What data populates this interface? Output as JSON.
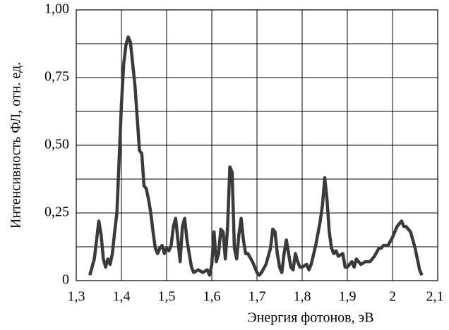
{
  "chart_data": {
    "type": "line",
    "x_label": "Энергия фотонов, эВ",
    "y_label": "Интенсивность ФЛ, отн. ед.",
    "xlim": [
      1.3,
      2.1
    ],
    "ylim": [
      0,
      1
    ],
    "xticks": [
      {
        "value": 1.3,
        "label": "1,3"
      },
      {
        "value": 1.4,
        "label": "1,4"
      },
      {
        "value": 1.5,
        "label": "1,5"
      },
      {
        "value": 1.6,
        "label": "1,6"
      },
      {
        "value": 1.7,
        "label": "1,7"
      },
      {
        "value": 1.8,
        "label": "1,8"
      },
      {
        "value": 1.9,
        "label": "1,9"
      },
      2,
      {
        "value": 2.1,
        "label": "2,1"
      }
    ],
    "yticks": [
      0,
      {
        "value": 0.25,
        "label": "0,25"
      },
      {
        "value": 0.5,
        "label": "0,50"
      },
      {
        "value": 0.75,
        "label": "0,75"
      },
      {
        "value": 1,
        "label": "1,00"
      }
    ],
    "y_minor_grid": [
      0.125,
      0.375,
      0.625,
      0.875
    ],
    "grid": true,
    "series": [
      {
        "color": "#3a3a3a",
        "x": [
          1.33,
          1.335,
          1.34,
          1.345,
          1.35,
          1.355,
          1.36,
          1.365,
          1.37,
          1.375,
          1.38,
          1.385,
          1.39,
          1.395,
          1.4,
          1.405,
          1.41,
          1.415,
          1.42,
          1.425,
          1.43,
          1.435,
          1.44,
          1.445,
          1.45,
          1.455,
          1.46,
          1.465,
          1.47,
          1.475,
          1.48,
          1.485,
          1.49,
          1.495,
          1.5,
          1.505,
          1.51,
          1.515,
          1.52,
          1.525,
          1.53,
          1.535,
          1.54,
          1.545,
          1.55,
          1.555,
          1.56,
          1.57,
          1.58,
          1.59,
          1.595,
          1.6,
          1.605,
          1.61,
          1.615,
          1.62,
          1.625,
          1.63,
          1.635,
          1.64,
          1.645,
          1.65,
          1.655,
          1.66,
          1.665,
          1.67,
          1.675,
          1.68,
          1.69,
          1.7,
          1.705,
          1.71,
          1.72,
          1.73,
          1.735,
          1.74,
          1.745,
          1.75,
          1.755,
          1.76,
          1.765,
          1.77,
          1.775,
          1.78,
          1.785,
          1.79,
          1.795,
          1.8,
          1.81,
          1.815,
          1.82,
          1.83,
          1.84,
          1.845,
          1.85,
          1.855,
          1.86,
          1.865,
          1.87,
          1.875,
          1.88,
          1.89,
          1.895,
          1.9,
          1.91,
          1.915,
          1.92,
          1.93,
          1.94,
          1.95,
          1.96,
          1.97,
          1.975,
          1.98,
          1.99,
          2.0,
          2.01,
          2.02,
          2.025,
          2.03,
          2.035,
          2.04,
          2.045,
          2.05,
          2.055,
          2.06,
          2.065
        ],
        "values": [
          0.02,
          0.05,
          0.08,
          0.15,
          0.22,
          0.17,
          0.08,
          0.05,
          0.08,
          0.06,
          0.1,
          0.18,
          0.25,
          0.45,
          0.65,
          0.8,
          0.87,
          0.9,
          0.88,
          0.8,
          0.72,
          0.6,
          0.48,
          0.47,
          0.35,
          0.34,
          0.3,
          0.25,
          0.18,
          0.12,
          0.1,
          0.12,
          0.13,
          0.1,
          0.12,
          0.11,
          0.13,
          0.2,
          0.23,
          0.15,
          0.07,
          0.2,
          0.23,
          0.15,
          0.1,
          0.05,
          0.03,
          0.04,
          0.03,
          0.04,
          0.02,
          0.06,
          0.18,
          0.07,
          0.1,
          0.19,
          0.18,
          0.08,
          0.2,
          0.42,
          0.4,
          0.12,
          0.08,
          0.17,
          0.23,
          0.15,
          0.1,
          0.1,
          0.07,
          0.03,
          0.02,
          0.03,
          0.06,
          0.12,
          0.19,
          0.18,
          0.1,
          0.05,
          0.03,
          0.1,
          0.15,
          0.1,
          0.05,
          0.04,
          0.1,
          0.07,
          0.05,
          0.05,
          0.06,
          0.04,
          0.06,
          0.13,
          0.22,
          0.28,
          0.38,
          0.3,
          0.18,
          0.12,
          0.1,
          0.11,
          0.09,
          0.1,
          0.05,
          0.05,
          0.07,
          0.05,
          0.08,
          0.06,
          0.07,
          0.07,
          0.09,
          0.12,
          0.12,
          0.13,
          0.13,
          0.16,
          0.2,
          0.22,
          0.2,
          0.2,
          0.19,
          0.18,
          0.15,
          0.12,
          0.08,
          0.04,
          0.02
        ]
      }
    ]
  }
}
